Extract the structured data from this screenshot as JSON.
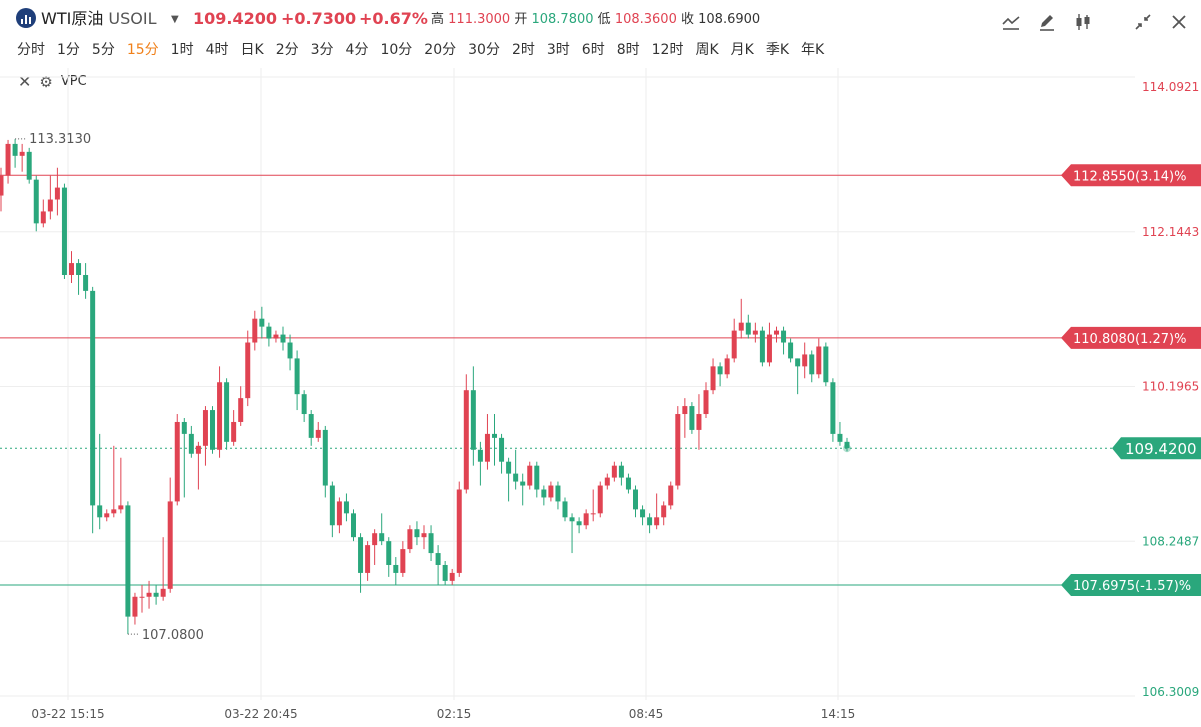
{
  "header": {
    "name": "WTI原油",
    "code": "USOIL",
    "price": "109.4200",
    "change": "+0.7300",
    "change_pct": "+0.67%",
    "high_label": "高",
    "high": "111.3000",
    "open_label": "开",
    "open": "108.7800",
    "low_label": "低",
    "low": "108.3600",
    "close_label": "收",
    "close": "108.6900"
  },
  "toolbar": {
    "icons": [
      "line-tool-icon",
      "pencil-icon",
      "candlestick-icon",
      "collapse-icon",
      "close-icon"
    ]
  },
  "periods": [
    "分时",
    "1分",
    "5分",
    "15分",
    "1时",
    "4时",
    "日K",
    "2分",
    "3分",
    "4分",
    "10分",
    "20分",
    "30分",
    "2时",
    "3时",
    "6时",
    "8时",
    "12时",
    "周K",
    "月K",
    "季K",
    "年K"
  ],
  "active_period": "15分",
  "indicator": {
    "name": "VPC"
  },
  "colors": {
    "up": "#e04352",
    "down": "#2aa77c",
    "grid": "#eeeeee",
    "last": "#2aa77c"
  },
  "chart_data": {
    "type": "candlestick",
    "ylim": [
      106.3009,
      114.0921
    ],
    "y_ticks": [
      "114.0921",
      "112.1443",
      "110.1965",
      "108.2487",
      "106.3009"
    ],
    "x_ticks": [
      "03-22 15:15",
      "03-22 20:45",
      "02:15",
      "08:45",
      "14:15"
    ],
    "markers": {
      "high": "113.3130",
      "low": "107.0800"
    },
    "price_lines": [
      {
        "value": 112.855,
        "label": "112.8550(3.14)%",
        "color": "#e04352"
      },
      {
        "value": 110.808,
        "label": "110.8080(1.27)%",
        "color": "#e04352"
      },
      {
        "value": 107.6975,
        "label": "107.6975(-1.57)%",
        "color": "#2aa77c"
      }
    ],
    "last_price": {
      "value": 109.42,
      "label": "109.4200"
    },
    "candles": [
      [
        112.6,
        112.85,
        112.4,
        112.95
      ],
      [
        112.85,
        113.25,
        112.75,
        113.3
      ],
      [
        113.25,
        113.1,
        112.95,
        113.31
      ],
      [
        113.1,
        113.15,
        112.9,
        113.25
      ],
      [
        113.15,
        112.8,
        112.75,
        113.2
      ],
      [
        112.8,
        112.25,
        112.15,
        112.85
      ],
      [
        112.25,
        112.4,
        112.2,
        112.55
      ],
      [
        112.4,
        112.55,
        112.3,
        112.85
      ],
      [
        112.55,
        112.7,
        112.35,
        112.95
      ],
      [
        112.7,
        111.6,
        111.55,
        112.75
      ],
      [
        111.6,
        111.75,
        111.5,
        111.9
      ],
      [
        111.75,
        111.6,
        111.35,
        111.8
      ],
      [
        111.6,
        111.4,
        111.3,
        111.75
      ],
      [
        111.4,
        108.7,
        108.35,
        111.45
      ],
      [
        108.7,
        108.55,
        108.4,
        109.6
      ],
      [
        108.55,
        108.6,
        108.5,
        108.65
      ],
      [
        108.6,
        108.65,
        108.55,
        109.45
      ],
      [
        108.65,
        108.7,
        108.6,
        109.3
      ],
      [
        108.7,
        107.3,
        107.08,
        108.75
      ],
      [
        107.3,
        107.55,
        107.2,
        107.6
      ],
      [
        107.55,
        107.55,
        107.35,
        107.7
      ],
      [
        107.55,
        107.6,
        107.4,
        107.75
      ],
      [
        107.6,
        107.55,
        107.45,
        107.7
      ],
      [
        107.55,
        107.65,
        107.5,
        108.3
      ],
      [
        107.65,
        108.75,
        107.6,
        109.05
      ],
      [
        108.75,
        109.75,
        108.7,
        109.85
      ],
      [
        109.75,
        109.6,
        108.8,
        109.8
      ],
      [
        109.6,
        109.35,
        109.3,
        109.7
      ],
      [
        109.35,
        109.45,
        108.9,
        109.5
      ],
      [
        109.45,
        109.9,
        109.2,
        109.95
      ],
      [
        109.9,
        109.4,
        109.35,
        109.95
      ],
      [
        109.4,
        110.25,
        109.3,
        110.45
      ],
      [
        110.25,
        109.5,
        109.4,
        110.3
      ],
      [
        109.5,
        109.75,
        109.45,
        109.9
      ],
      [
        109.75,
        110.05,
        109.7,
        110.2
      ],
      [
        110.05,
        110.75,
        109.95,
        110.9
      ],
      [
        110.75,
        111.05,
        110.65,
        111.15
      ],
      [
        111.05,
        110.95,
        110.8,
        111.2
      ],
      [
        110.95,
        110.8,
        110.7,
        111.0
      ],
      [
        110.8,
        110.85,
        110.75,
        110.9
      ],
      [
        110.85,
        110.75,
        110.65,
        110.95
      ],
      [
        110.75,
        110.55,
        110.4,
        110.85
      ],
      [
        110.55,
        110.1,
        109.9,
        110.65
      ],
      [
        110.1,
        109.85,
        109.75,
        110.15
      ],
      [
        109.85,
        109.55,
        109.45,
        109.9
      ],
      [
        109.55,
        109.65,
        109.5,
        109.75
      ],
      [
        109.65,
        108.95,
        108.8,
        109.7
      ],
      [
        108.95,
        108.45,
        108.3,
        109.0
      ],
      [
        108.45,
        108.75,
        108.35,
        108.8
      ],
      [
        108.75,
        108.6,
        108.5,
        108.85
      ],
      [
        108.6,
        108.3,
        108.25,
        108.65
      ],
      [
        108.3,
        107.85,
        107.6,
        108.35
      ],
      [
        107.85,
        108.2,
        107.75,
        108.25
      ],
      [
        108.2,
        108.35,
        107.95,
        108.4
      ],
      [
        108.35,
        108.25,
        108.2,
        108.6
      ],
      [
        108.25,
        107.95,
        107.8,
        108.3
      ],
      [
        107.95,
        107.85,
        107.7,
        108.05
      ],
      [
        107.85,
        108.15,
        107.8,
        108.25
      ],
      [
        108.15,
        108.4,
        108.1,
        108.45
      ],
      [
        108.4,
        108.3,
        108.2,
        108.5
      ],
      [
        108.3,
        108.35,
        108.15,
        108.45
      ],
      [
        108.35,
        108.1,
        108.0,
        108.45
      ],
      [
        108.1,
        107.95,
        107.7,
        108.2
      ],
      [
        107.95,
        107.75,
        107.7,
        108.0
      ],
      [
        107.75,
        107.85,
        107.7,
        107.9
      ],
      [
        107.85,
        108.9,
        107.8,
        109.0
      ],
      [
        108.9,
        110.15,
        108.85,
        110.35
      ],
      [
        110.15,
        109.4,
        109.2,
        110.45
      ],
      [
        109.4,
        109.25,
        108.95,
        109.5
      ],
      [
        109.25,
        109.6,
        109.15,
        109.85
      ],
      [
        109.6,
        109.55,
        109.2,
        109.85
      ],
      [
        109.55,
        109.25,
        109.1,
        109.6
      ],
      [
        109.25,
        109.1,
        108.75,
        109.3
      ],
      [
        109.1,
        109.0,
        108.9,
        109.4
      ],
      [
        109.0,
        108.95,
        108.7,
        109.1
      ],
      [
        108.95,
        109.2,
        108.9,
        109.25
      ],
      [
        109.2,
        108.9,
        108.8,
        109.25
      ],
      [
        108.9,
        108.8,
        108.7,
        108.95
      ],
      [
        108.8,
        108.95,
        108.75,
        109.0
      ],
      [
        108.95,
        108.75,
        108.65,
        109.0
      ],
      [
        108.75,
        108.55,
        108.5,
        108.8
      ],
      [
        108.55,
        108.5,
        108.1,
        108.6
      ],
      [
        108.5,
        108.45,
        108.35,
        108.55
      ],
      [
        108.45,
        108.6,
        108.4,
        108.65
      ],
      [
        108.6,
        108.6,
        108.5,
        108.9
      ],
      [
        108.6,
        108.95,
        108.55,
        109.0
      ],
      [
        108.95,
        109.05,
        108.9,
        109.1
      ],
      [
        109.05,
        109.2,
        109.0,
        109.25
      ],
      [
        109.2,
        109.05,
        108.95,
        109.25
      ],
      [
        109.05,
        108.9,
        108.85,
        109.1
      ],
      [
        108.9,
        108.65,
        108.55,
        108.95
      ],
      [
        108.65,
        108.55,
        108.45,
        108.7
      ],
      [
        108.55,
        108.45,
        108.35,
        108.6
      ],
      [
        108.45,
        108.55,
        108.4,
        108.85
      ],
      [
        108.55,
        108.7,
        108.45,
        108.75
      ],
      [
        108.7,
        108.95,
        108.65,
        109.0
      ],
      [
        108.95,
        109.85,
        108.9,
        109.95
      ],
      [
        109.85,
        109.95,
        109.55,
        110.05
      ],
      [
        109.95,
        109.65,
        109.6,
        110.0
      ],
      [
        109.65,
        109.85,
        109.4,
        110.1
      ],
      [
        109.85,
        110.15,
        109.8,
        110.25
      ],
      [
        110.15,
        110.45,
        110.1,
        110.55
      ],
      [
        110.45,
        110.35,
        110.2,
        110.5
      ],
      [
        110.35,
        110.55,
        110.3,
        110.6
      ],
      [
        110.55,
        110.9,
        110.5,
        111.05
      ],
      [
        110.9,
        111.0,
        110.8,
        111.3
      ],
      [
        111.0,
        110.85,
        110.8,
        111.1
      ],
      [
        110.85,
        110.9,
        110.75,
        111.0
      ],
      [
        110.9,
        110.5,
        110.45,
        110.95
      ],
      [
        110.5,
        110.85,
        110.45,
        111.0
      ],
      [
        110.85,
        110.9,
        110.75,
        110.95
      ],
      [
        110.9,
        110.75,
        110.6,
        110.95
      ],
      [
        110.75,
        110.55,
        110.5,
        110.8
      ],
      [
        110.55,
        110.45,
        110.1,
        110.55
      ],
      [
        110.45,
        110.6,
        110.3,
        110.75
      ],
      [
        110.6,
        110.35,
        110.25,
        110.65
      ],
      [
        110.35,
        110.7,
        110.3,
        110.8
      ],
      [
        110.7,
        110.25,
        110.2,
        110.75
      ],
      [
        110.25,
        109.6,
        109.5,
        110.3
      ],
      [
        109.6,
        109.5,
        109.45,
        109.75
      ],
      [
        109.5,
        109.42,
        109.38,
        109.55
      ]
    ]
  }
}
